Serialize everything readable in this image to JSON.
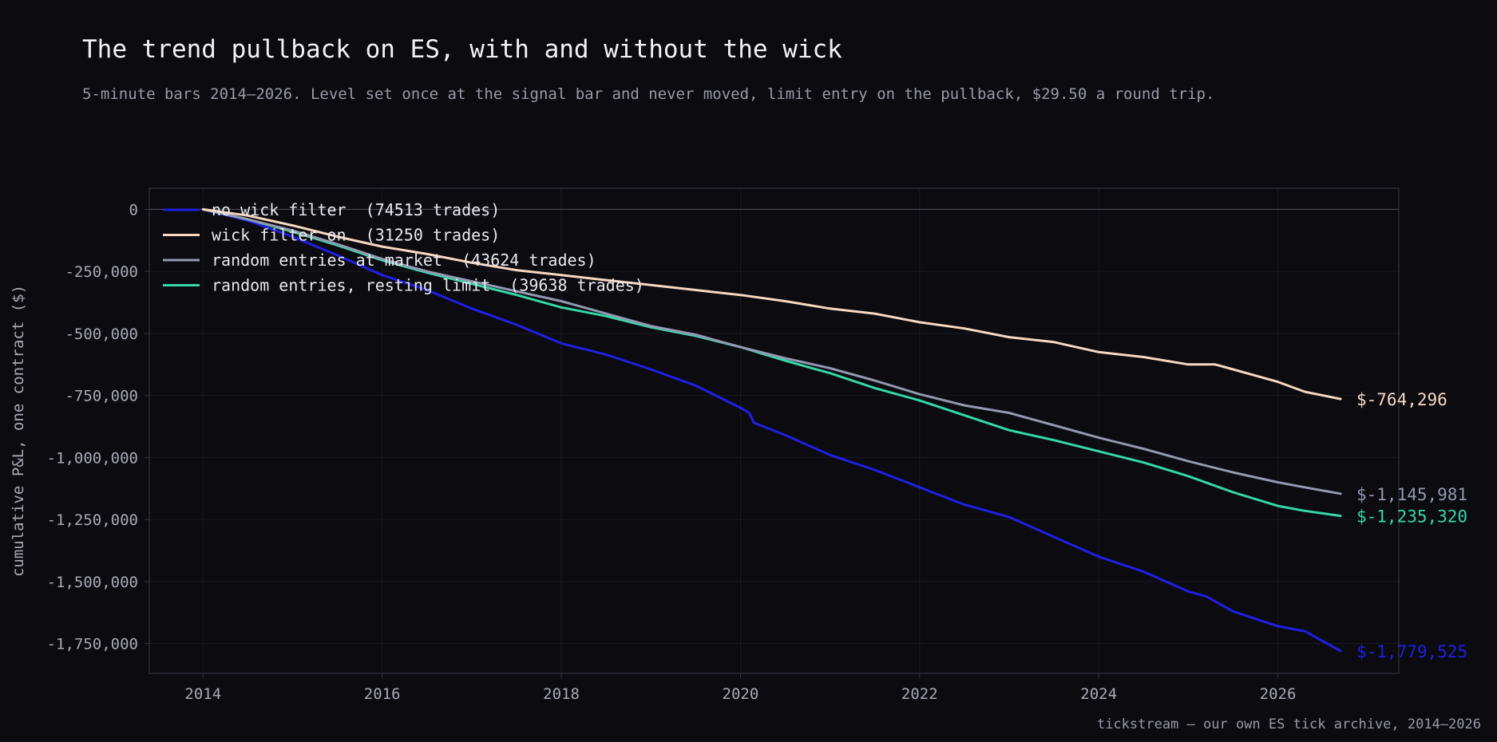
{
  "header": {
    "title": "The trend pullback on ES, with and without the wick",
    "subtitle": "5-minute bars 2014–2026. Level set once at the signal bar and never moved, limit entry on the pullback, $29.50 a round trip."
  },
  "footer": {
    "source": "tickstream — our own ES tick archive, 2014–2026"
  },
  "colors": {
    "background": "#0b0b10",
    "plot_border": "#34343e",
    "grid": "#1a1a22",
    "zero_line": "#4a4a55"
  },
  "chart_data": {
    "type": "line",
    "title": "The trend pullback on ES, with and without the wick",
    "xlabel": "",
    "ylabel": "cumulative P&L, one contract ($)",
    "xlim": [
      2013.4,
      2027.35
    ],
    "ylim": [
      -1870000,
      85000
    ],
    "x_ticks": [
      2014,
      2016,
      2018,
      2020,
      2022,
      2024,
      2026
    ],
    "x_tick_labels": [
      "2014",
      "2016",
      "2018",
      "2020",
      "2022",
      "2024",
      "2026"
    ],
    "y_ticks": [
      0,
      -250000,
      -500000,
      -750000,
      -1000000,
      -1250000,
      -1500000,
      -1750000
    ],
    "y_tick_labels": [
      "0",
      "-250,000",
      "-500,000",
      "-750,000",
      "-1,000,000",
      "-1,250,000",
      "-1,500,000",
      "-1,750,000"
    ],
    "grid": true,
    "legend_position": "top-left",
    "series": [
      {
        "name": "no wick filter  (74513 trades)",
        "color": "#1f1fe6",
        "end_label": "$-1,779,525",
        "x": [
          2014.0,
          2014.5,
          2015.0,
          2015.5,
          2016.0,
          2016.5,
          2017.0,
          2017.5,
          2018.0,
          2018.5,
          2019.0,
          2019.5,
          2020.0,
          2020.1,
          2020.15,
          2020.5,
          2021.0,
          2021.5,
          2022.0,
          2022.5,
          2023.0,
          2023.5,
          2024.0,
          2024.5,
          2025.0,
          2025.2,
          2025.5,
          2026.0,
          2026.3,
          2026.7
        ],
        "y": [
          0,
          -45000,
          -110000,
          -185000,
          -265000,
          -325000,
          -400000,
          -465000,
          -540000,
          -585000,
          -645000,
          -710000,
          -800000,
          -820000,
          -860000,
          -910000,
          -990000,
          -1050000,
          -1120000,
          -1190000,
          -1240000,
          -1320000,
          -1400000,
          -1460000,
          -1540000,
          -1560000,
          -1620000,
          -1680000,
          -1700000,
          -1779525
        ]
      },
      {
        "name": "wick filter on  (31250 trades)",
        "color": "#f8d8c0",
        "end_label": "$-764,296",
        "x": [
          2014.0,
          2014.5,
          2015.0,
          2015.5,
          2016.0,
          2016.5,
          2017.0,
          2017.5,
          2018.0,
          2018.5,
          2019.0,
          2019.5,
          2020.0,
          2020.5,
          2021.0,
          2021.5,
          2022.0,
          2022.5,
          2023.0,
          2023.5,
          2024.0,
          2024.5,
          2025.0,
          2025.3,
          2025.5,
          2026.0,
          2026.3,
          2026.7
        ],
        "y": [
          0,
          -25000,
          -65000,
          -110000,
          -150000,
          -180000,
          -215000,
          -245000,
          -265000,
          -285000,
          -305000,
          -325000,
          -345000,
          -370000,
          -400000,
          -420000,
          -455000,
          -480000,
          -515000,
          -535000,
          -575000,
          -595000,
          -625000,
          -625000,
          -645000,
          -695000,
          -735000,
          -764296
        ]
      },
      {
        "name": "random entries at market  (43624 trades)",
        "color": "#9498b0",
        "end_label": "$-1,145,981",
        "x": [
          2014.0,
          2014.5,
          2015.0,
          2015.5,
          2016.0,
          2016.5,
          2017.0,
          2017.5,
          2018.0,
          2018.5,
          2019.0,
          2019.5,
          2020.0,
          2020.5,
          2021.0,
          2021.5,
          2022.0,
          2022.5,
          2023.0,
          2023.5,
          2024.0,
          2024.5,
          2025.0,
          2025.5,
          2026.0,
          2026.3,
          2026.7
        ],
        "y": [
          0,
          -40000,
          -85000,
          -140000,
          -200000,
          -250000,
          -290000,
          -330000,
          -370000,
          -420000,
          -470000,
          -505000,
          -555000,
          -600000,
          -640000,
          -690000,
          -745000,
          -790000,
          -820000,
          -870000,
          -920000,
          -965000,
          -1015000,
          -1060000,
          -1100000,
          -1120000,
          -1145981
        ]
      },
      {
        "name": "random entries, resting limit  (39638 trades)",
        "color": "#34d8a8",
        "end_label": "$-1,235,320",
        "x": [
          2014.0,
          2014.5,
          2015.0,
          2015.5,
          2016.0,
          2016.5,
          2017.0,
          2017.5,
          2018.0,
          2018.5,
          2019.0,
          2019.5,
          2020.0,
          2020.5,
          2021.0,
          2021.5,
          2022.0,
          2022.5,
          2023.0,
          2023.5,
          2024.0,
          2024.5,
          2025.0,
          2025.5,
          2026.0,
          2026.3,
          2026.7
        ],
        "y": [
          0,
          -40000,
          -90000,
          -145000,
          -205000,
          -255000,
          -300000,
          -345000,
          -395000,
          -430000,
          -475000,
          -510000,
          -555000,
          -610000,
          -660000,
          -720000,
          -770000,
          -830000,
          -890000,
          -930000,
          -975000,
          -1020000,
          -1075000,
          -1140000,
          -1195000,
          -1215000,
          -1235320
        ]
      }
    ]
  }
}
